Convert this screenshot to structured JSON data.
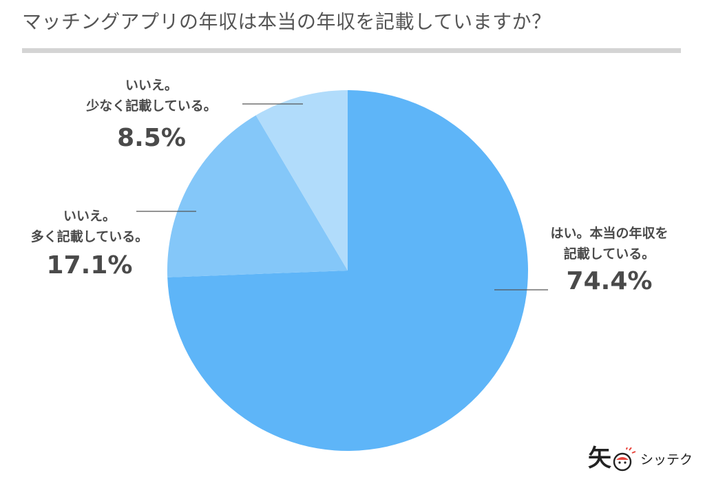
{
  "title": "マッチングアプリの年収は本当の年収を記載していますか？",
  "chart_data": {
    "type": "pie",
    "start_angle_deg": 0,
    "direction": "clockwise",
    "slices": [
      {
        "line1": "はい。本当の年収を",
        "line2": "記載している。",
        "percent_label": "74.4%",
        "value": 74.4,
        "color": "#5eb5f8"
      },
      {
        "line1": "いいえ。",
        "line2": "多く記載している。",
        "percent_label": "17.1%",
        "value": 17.1,
        "color": "#84c7f9"
      },
      {
        "line1": "いいえ。",
        "line2": "少なく記載している。",
        "percent_label": "8.5%",
        "value": 8.5,
        "color": "#b1dcfb"
      }
    ]
  },
  "logo": {
    "mark": "矢",
    "text": "シッテク",
    "accent_color": "#e8453c"
  }
}
